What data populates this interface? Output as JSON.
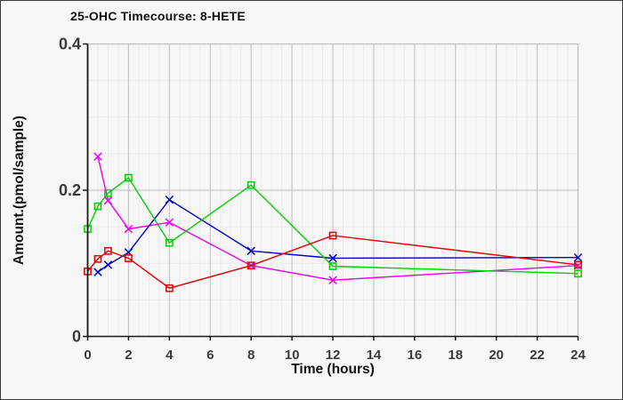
{
  "chart_data": {
    "type": "line",
    "title": "25-OHC Timecourse: 8-HETE",
    "xlabel": "Time (hours)",
    "ylabel": "Amount.(pmol/sample)",
    "xlim": [
      0,
      24
    ],
    "ylim": [
      0,
      0.4
    ],
    "x_major_ticks": [
      0,
      2,
      4,
      6,
      8,
      10,
      12,
      14,
      16,
      18,
      20,
      22,
      24
    ],
    "x_tick_labels": [
      "0",
      "2",
      "4",
      "6",
      "8",
      "10",
      "12",
      "14",
      "16",
      "18",
      "20",
      "22",
      "24"
    ],
    "y_major_ticks": [
      0,
      0.2,
      0.4
    ],
    "y_tick_labels": [
      "0",
      "0.2",
      "0.4"
    ],
    "x_minor_step": 0.5,
    "y_minor_step": 0.05,
    "grid": true,
    "legend_position": "none",
    "series": [
      {
        "name": "magenta-x-series",
        "color": "#ee00ee",
        "marker": "x",
        "x": [
          0.5,
          1,
          2,
          4,
          8,
          12,
          24
        ],
        "y": [
          0.246,
          0.186,
          0.147,
          0.156,
          0.097,
          0.077,
          0.097
        ]
      },
      {
        "name": "blue-x-series",
        "color": "#0000cd",
        "marker": "x",
        "x": [
          0.5,
          1,
          2,
          4,
          8,
          12,
          24
        ],
        "y": [
          0.088,
          0.098,
          0.115,
          0.187,
          0.117,
          0.107,
          0.108
        ]
      },
      {
        "name": "green-square-series",
        "color": "#00cf00",
        "marker": "square",
        "x": [
          0,
          0.5,
          1,
          2,
          4,
          8,
          12,
          24
        ],
        "y": [
          0.147,
          0.178,
          0.196,
          0.217,
          0.128,
          0.207,
          0.096,
          0.086
        ]
      },
      {
        "name": "red-square-series",
        "color": "#e30000",
        "marker": "square",
        "x": [
          0,
          0.5,
          1,
          2,
          4,
          8,
          12,
          24
        ],
        "y": [
          0.089,
          0.106,
          0.117,
          0.107,
          0.066,
          0.097,
          0.138,
          0.098
        ]
      }
    ],
    "colors": {
      "background": "#f7f7f7",
      "frame_border": "#3c3c3c",
      "axis": "#161616",
      "grid_major": "#c7c7c7",
      "grid_minor": "#ebebeb",
      "plot_edge": "#bdbdbd",
      "tick_text": "#3a3a3a",
      "title_text": "#111111"
    }
  }
}
